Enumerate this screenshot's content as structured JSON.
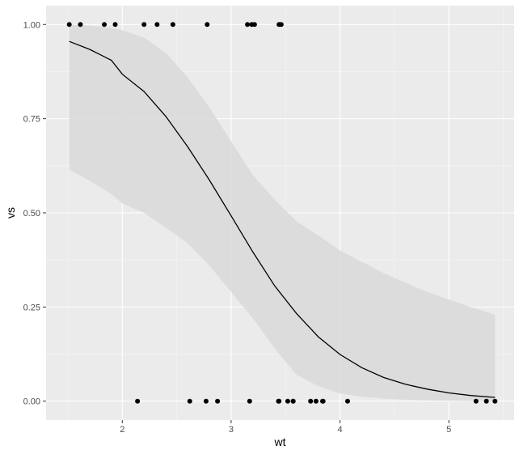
{
  "chart_data": {
    "type": "scatter",
    "xlabel": "wt",
    "ylabel": "vs",
    "xlim": [
      1.3,
      5.6
    ],
    "ylim": [
      -0.05,
      1.05
    ],
    "x_ticks": [
      2,
      3,
      4,
      5
    ],
    "x_tick_labels": [
      "2",
      "3",
      "4",
      "5"
    ],
    "y_ticks": [
      0,
      0.25,
      0.5,
      0.75,
      1
    ],
    "y_tick_labels": [
      "0.00",
      "0.25",
      "0.50",
      "0.75",
      "1.00"
    ],
    "grid": true,
    "points": [
      {
        "x": 1.513,
        "y": 1
      },
      {
        "x": 1.615,
        "y": 1
      },
      {
        "x": 1.835,
        "y": 1
      },
      {
        "x": 1.935,
        "y": 1
      },
      {
        "x": 2.2,
        "y": 1
      },
      {
        "x": 2.32,
        "y": 1
      },
      {
        "x": 2.465,
        "y": 1
      },
      {
        "x": 2.78,
        "y": 1
      },
      {
        "x": 3.15,
        "y": 1
      },
      {
        "x": 3.19,
        "y": 1
      },
      {
        "x": 3.215,
        "y": 1
      },
      {
        "x": 3.44,
        "y": 1
      },
      {
        "x": 3.46,
        "y": 1
      },
      {
        "x": 2.14,
        "y": 0
      },
      {
        "x": 2.62,
        "y": 0
      },
      {
        "x": 2.77,
        "y": 0
      },
      {
        "x": 2.875,
        "y": 0
      },
      {
        "x": 3.17,
        "y": 0
      },
      {
        "x": 3.435,
        "y": 0
      },
      {
        "x": 3.44,
        "y": 0
      },
      {
        "x": 3.52,
        "y": 0
      },
      {
        "x": 3.57,
        "y": 0
      },
      {
        "x": 3.57,
        "y": 0
      },
      {
        "x": 3.73,
        "y": 0
      },
      {
        "x": 3.78,
        "y": 0
      },
      {
        "x": 3.84,
        "y": 0
      },
      {
        "x": 3.845,
        "y": 0
      },
      {
        "x": 4.07,
        "y": 0
      },
      {
        "x": 5.25,
        "y": 0
      },
      {
        "x": 5.345,
        "y": 0
      },
      {
        "x": 5.424,
        "y": 0
      }
    ],
    "fit_line": {
      "x": [
        1.513,
        1.7,
        1.9,
        2.0,
        2.2,
        2.4,
        2.6,
        2.8,
        3.0,
        3.2,
        3.4,
        3.6,
        3.8,
        4.0,
        4.2,
        4.4,
        4.6,
        4.8,
        5.0,
        5.2,
        5.424
      ],
      "y": [
        0.955,
        0.934,
        0.905,
        0.868,
        0.822,
        0.756,
        0.676,
        0.587,
        0.492,
        0.396,
        0.306,
        0.233,
        0.171,
        0.124,
        0.089,
        0.063,
        0.045,
        0.032,
        0.022,
        0.015,
        0.01
      ]
    },
    "confidence_band": {
      "x": [
        1.513,
        1.7,
        1.9,
        2.0,
        2.2,
        2.4,
        2.6,
        2.8,
        3.0,
        3.2,
        3.4,
        3.6,
        3.8,
        4.0,
        4.2,
        4.4,
        4.6,
        4.8,
        5.0,
        5.2,
        5.424
      ],
      "upper": [
        1.0,
        0.997,
        0.99,
        0.985,
        0.965,
        0.925,
        0.86,
        0.78,
        0.69,
        0.6,
        0.535,
        0.478,
        0.44,
        0.4,
        0.37,
        0.34,
        0.315,
        0.29,
        0.27,
        0.25,
        0.23
      ],
      "lower": [
        0.615,
        0.585,
        0.55,
        0.525,
        0.5,
        0.46,
        0.42,
        0.36,
        0.29,
        0.22,
        0.14,
        0.07,
        0.04,
        0.02,
        0.012,
        0.007,
        0.004,
        0.002,
        0.001,
        0.0005,
        0.0002
      ]
    },
    "colors": {
      "panel": "#ebebeb",
      "grid_major": "#ffffff",
      "band": "#d9d9d9",
      "line": "#000000",
      "points": "#000000"
    }
  }
}
